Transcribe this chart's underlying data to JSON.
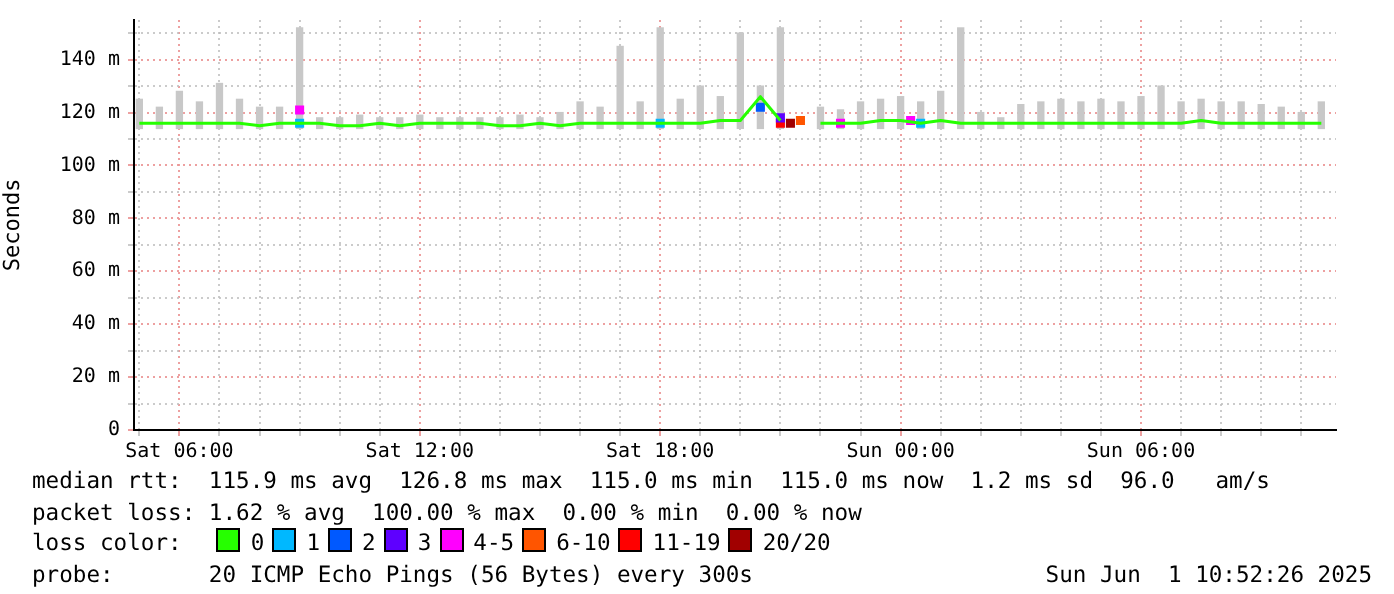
{
  "chart_data": {
    "type": "line",
    "ylabel": "Seconds",
    "legend_title": "loss color:",
    "legend": "bottom",
    "grid": true,
    "marker": "none",
    "annotations": [
      "median rtt:  115.9 ms avg  126.8 ms max  115.0 ms min  115.0 ms now  1.2 ms sd  96.0   am/s",
      "packet loss: 1.62 % avg  100.00 % max  0.00 % min  0.00 % now",
      "probe:       20 ICMP Echo Pings (56 Bytes) every 300s",
      "Sun Jun  1 10:52:26 2025"
    ],
    "xlim": [
      "2025-05-31T04:52",
      "2025-06-01T10:52"
    ],
    "xticks": [
      {
        "value": "2025-05-31T05:00",
        "label": null
      },
      {
        "value": "2025-05-31T06:00",
        "label": "Sat 06:00"
      },
      {
        "value": "2025-05-31T07:00",
        "label": null
      },
      {
        "value": "2025-05-31T08:00",
        "label": null
      },
      {
        "value": "2025-05-31T09:00",
        "label": null
      },
      {
        "value": "2025-05-31T10:00",
        "label": null
      },
      {
        "value": "2025-05-31T11:00",
        "label": null
      },
      {
        "value": "2025-05-31T12:00",
        "label": "Sat 12:00"
      },
      {
        "value": "2025-05-31T13:00",
        "label": null
      },
      {
        "value": "2025-05-31T14:00",
        "label": null
      },
      {
        "value": "2025-05-31T15:00",
        "label": null
      },
      {
        "value": "2025-05-31T16:00",
        "label": null
      },
      {
        "value": "2025-05-31T17:00",
        "label": null
      },
      {
        "value": "2025-05-31T18:00",
        "label": "Sat 18:00"
      },
      {
        "value": "2025-05-31T19:00",
        "label": null
      },
      {
        "value": "2025-05-31T20:00",
        "label": null
      },
      {
        "value": "2025-05-31T21:00",
        "label": null
      },
      {
        "value": "2025-05-31T22:00",
        "label": null
      },
      {
        "value": "2025-05-31T23:00",
        "label": null
      },
      {
        "value": "2025-06-01T00:00",
        "label": "Sun 00:00"
      },
      {
        "value": "2025-06-01T01:00",
        "label": null
      },
      {
        "value": "2025-06-01T02:00",
        "label": null
      },
      {
        "value": "2025-06-01T03:00",
        "label": null
      },
      {
        "value": "2025-06-01T04:00",
        "label": null
      },
      {
        "value": "2025-06-01T05:00",
        "label": null
      },
      {
        "value": "2025-06-01T06:00",
        "label": "Sun 06:00"
      },
      {
        "value": "2025-06-01T07:00",
        "label": null
      },
      {
        "value": "2025-06-01T08:00",
        "label": null
      },
      {
        "value": "2025-06-01T09:00",
        "label": null
      },
      {
        "value": "2025-06-01T10:00",
        "label": null
      }
    ],
    "ylim": [
      0,
      155
    ],
    "yticks": [
      0,
      {
        "value": 10,
        "label": null
      },
      {
        "value": 20,
        "label": "20 m"
      },
      {
        "value": 30,
        "label": null
      },
      {
        "value": 40,
        "label": "40 m"
      },
      {
        "value": 50,
        "label": null
      },
      {
        "value": 60,
        "label": "60 m"
      },
      {
        "value": 70,
        "label": null
      },
      {
        "value": 80,
        "label": "80 m"
      },
      {
        "value": 90,
        "label": null
      },
      {
        "value": 100,
        "label": "100 m"
      },
      {
        "value": 110,
        "label": null
      },
      {
        "value": 120,
        "label": "120 m"
      },
      {
        "value": 130,
        "label": null
      },
      {
        "value": 140,
        "label": "140 m"
      },
      {
        "value": 150,
        "label": null
      }
    ],
    "x": [
      "2025-05-31T05:00",
      "2025-05-31T05:30",
      "2025-05-31T06:00",
      "2025-05-31T06:30",
      "2025-05-31T07:00",
      "2025-05-31T07:30",
      "2025-05-31T08:00",
      "2025-05-31T08:30",
      "2025-05-31T09:00",
      "2025-05-31T09:30",
      "2025-05-31T10:00",
      "2025-05-31T10:30",
      "2025-05-31T11:00",
      "2025-05-31T11:30",
      "2025-05-31T12:00",
      "2025-05-31T12:30",
      "2025-05-31T13:00",
      "2025-05-31T13:30",
      "2025-05-31T14:00",
      "2025-05-31T14:30",
      "2025-05-31T15:00",
      "2025-05-31T15:30",
      "2025-05-31T16:00",
      "2025-05-31T16:30",
      "2025-05-31T17:00",
      "2025-05-31T17:30",
      "2025-05-31T18:00",
      "2025-05-31T18:30",
      "2025-05-31T19:00",
      "2025-05-31T19:30",
      "2025-05-31T20:00",
      "2025-05-31T20:30",
      "2025-05-31T21:00",
      "2025-05-31T21:30",
      "2025-05-31T22:00",
      "2025-05-31T22:30",
      "2025-05-31T23:00",
      "2025-05-31T23:30",
      "2025-06-01T00:00",
      "2025-06-01T00:30",
      "2025-06-01T01:00",
      "2025-06-01T01:30",
      "2025-06-01T02:00",
      "2025-06-01T02:30",
      "2025-06-01T03:00",
      "2025-06-01T03:30",
      "2025-06-01T04:00",
      "2025-06-01T04:30",
      "2025-06-01T05:00",
      "2025-06-01T05:30",
      "2025-06-01T06:00",
      "2025-06-01T06:30",
      "2025-06-01T07:00",
      "2025-06-01T07:30",
      "2025-06-01T08:00",
      "2025-06-01T08:30",
      "2025-06-01T09:00",
      "2025-06-01T09:30",
      "2025-06-01T10:00",
      "2025-06-01T10:30"
    ],
    "series": [
      {
        "type": "bar",
        "color": "#c8c8c8",
        "base": [
          114,
          114,
          114,
          114,
          114,
          114,
          114,
          114,
          114,
          114,
          114,
          114,
          114,
          114,
          114,
          114,
          114,
          114,
          114,
          114,
          114,
          114,
          114,
          114,
          114,
          114,
          114,
          114,
          114,
          114,
          114,
          114,
          114,
          null,
          114,
          114,
          114,
          114,
          114,
          114,
          114,
          114,
          114,
          114,
          114,
          114,
          114,
          114,
          114,
          114,
          114,
          114,
          114,
          114,
          114,
          114,
          114,
          114,
          114,
          114
        ],
        "values": [
          11,
          8,
          14,
          10,
          17,
          11,
          8,
          8,
          38,
          4,
          4,
          5,
          4,
          4,
          5,
          4,
          4,
          4,
          4,
          5,
          4,
          6,
          10,
          8,
          31,
          10,
          38,
          11,
          16,
          12,
          36,
          16,
          38,
          null,
          8,
          7,
          10,
          11,
          12,
          10,
          14,
          38,
          6,
          4,
          9,
          10,
          11,
          10,
          11,
          10,
          12,
          16,
          10,
          11,
          10,
          10,
          9,
          8,
          6,
          10
        ]
      },
      {
        "name": "0",
        "color": "#26ff00",
        "values": [
          116,
          116,
          116,
          116,
          116,
          116,
          115,
          116,
          116,
          116,
          115,
          115,
          116,
          115,
          116,
          116,
          116,
          116,
          115,
          115,
          116,
          115,
          116,
          116,
          116,
          116,
          116,
          116,
          116,
          117,
          117,
          126,
          117,
          null,
          116,
          116,
          116,
          117,
          117,
          116,
          117,
          116,
          116,
          116,
          116,
          116,
          116,
          116,
          116,
          116,
          116,
          116,
          116,
          117,
          116,
          116,
          116,
          116,
          116,
          116
        ]
      },
      {
        "name": "1",
        "type": "scatter",
        "marker": "square",
        "color": "#00b8ff",
        "x": [
          "2025-05-31T09:00",
          "2025-05-31T18:00",
          "2025-06-01T00:30"
        ],
        "values": [
          116,
          116,
          116
        ]
      },
      {
        "name": "2",
        "type": "scatter",
        "marker": "square",
        "color": "#0059ff",
        "x": [
          "2025-05-31T20:30"
        ],
        "values": [
          122
        ]
      },
      {
        "name": "3",
        "type": "scatter",
        "marker": "square",
        "color": "#5e00ff",
        "x": [
          "2025-05-31T21:00"
        ],
        "values": [
          118
        ]
      },
      {
        "name": "4-5",
        "type": "scatter",
        "marker": "square",
        "color": "#ff00fe",
        "x": [
          "2025-05-31T09:00",
          "2025-05-31T22:30",
          "2025-06-01T00:15"
        ],
        "values": [
          121,
          116,
          117
        ]
      },
      {
        "name": "6-10",
        "type": "scatter",
        "marker": "square",
        "color": "#ff5500",
        "x": [
          "2025-05-31T21:30"
        ],
        "values": [
          117
        ]
      },
      {
        "name": "11-19",
        "type": "scatter",
        "marker": "square",
        "color": "#ff0000",
        "x": [
          "2025-05-31T21:00"
        ],
        "values": [
          116
        ]
      },
      {
        "name": "20/20",
        "type": "scatter",
        "marker": "square",
        "color": "#a10000",
        "x": [
          "2025-05-31T21:15"
        ],
        "values": [
          116
        ]
      }
    ]
  }
}
